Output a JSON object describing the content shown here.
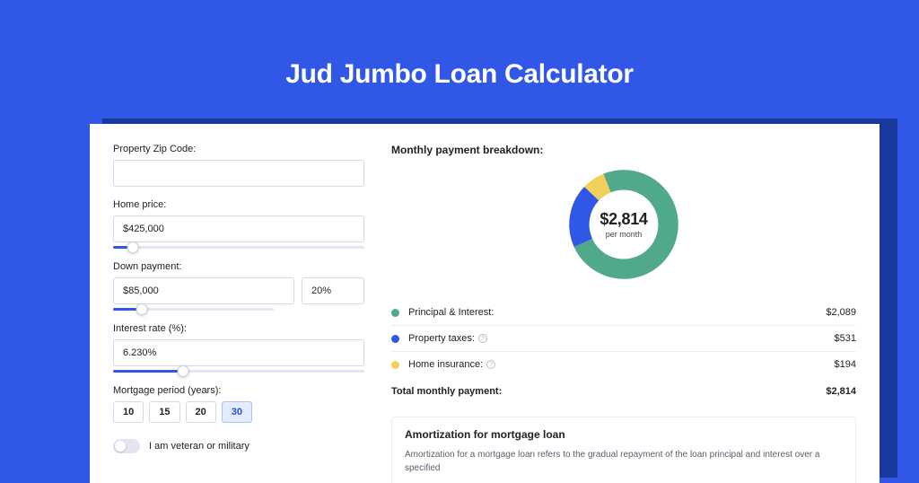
{
  "page": {
    "title": "Jud Jumbo Loan Calculator",
    "bg_color": "#3157e6",
    "shadow_color": "#19389e",
    "card_bg": "#ffffff"
  },
  "form": {
    "zip_label": "Property Zip Code:",
    "zip_value": "",
    "home_price_label": "Home price:",
    "home_price_value": "$425,000",
    "home_price_slider_pct": 8,
    "down_payment_label": "Down payment:",
    "down_payment_value": "$85,000",
    "down_payment_pct_value": "20%",
    "down_payment_slider_pct": 18,
    "interest_label": "Interest rate (%):",
    "interest_value": "6.230%",
    "interest_slider_pct": 28,
    "period_label": "Mortgage period (years):",
    "period_options": [
      "10",
      "15",
      "20",
      "30"
    ],
    "period_selected": "30",
    "veteran_label": "I am veteran or military"
  },
  "breakdown": {
    "title": "Monthly payment breakdown:",
    "donut": {
      "amount": "$2,814",
      "sub": "per month",
      "segments": [
        {
          "name": "principal_interest",
          "color": "#51a98b",
          "fraction": 0.742
        },
        {
          "name": "property_taxes",
          "color": "#3157e6",
          "fraction": 0.189
        },
        {
          "name": "home_insurance",
          "color": "#f1cf5a",
          "fraction": 0.069
        }
      ],
      "thickness": 18,
      "bg": "#ffffff"
    },
    "rows": [
      {
        "dot": "#51a98b",
        "label": "Principal & Interest:",
        "info": false,
        "value": "$2,089"
      },
      {
        "dot": "#3157e6",
        "label": "Property taxes:",
        "info": true,
        "value": "$531"
      },
      {
        "dot": "#f1cf5a",
        "label": "Home insurance:",
        "info": true,
        "value": "$194"
      }
    ],
    "total_label": "Total monthly payment:",
    "total_value": "$2,814"
  },
  "amortization": {
    "title": "Amortization for mortgage loan",
    "text": "Amortization for a mortgage loan refers to the gradual repayment of the loan principal and interest over a specified"
  }
}
